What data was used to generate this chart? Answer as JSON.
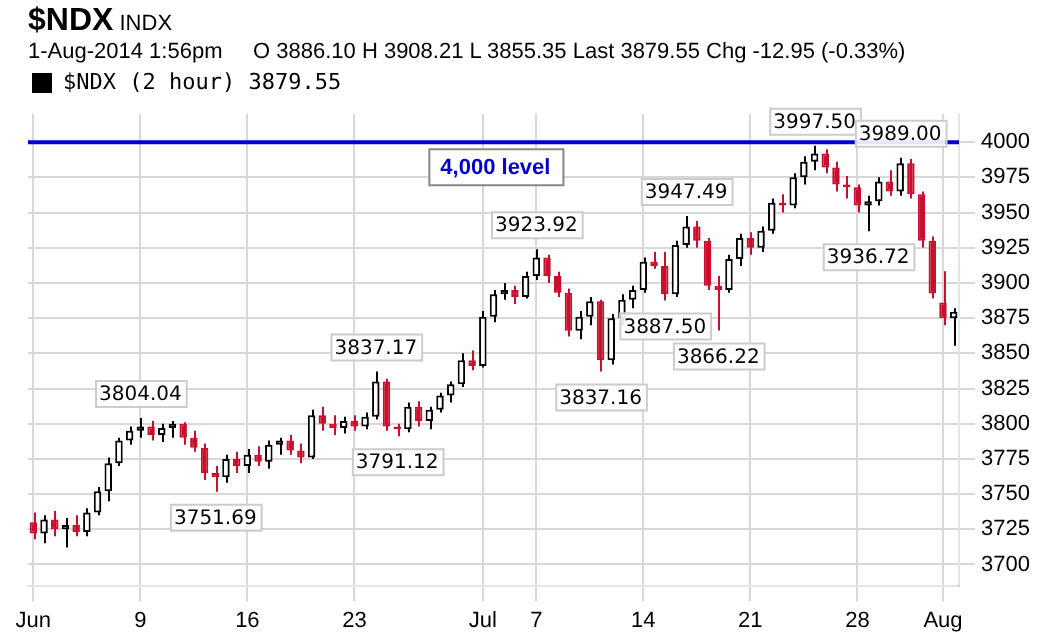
{
  "chart_data": {
    "type": "candlestick",
    "title": "$NDX",
    "annotations": [
      "INDX",
      "1-Aug-2014 1:56pm",
      "O 3886.10 H 3908.21 L 3855.35 Last 3879.55 Chg -12.95 (-0.33%)",
      {
        "text": "3804.04",
        "y": 3804.04
      },
      {
        "text": "3751.69",
        "y": 3751.69
      },
      {
        "text": "3837.17",
        "y": 3837.17
      },
      {
        "text": "3791.12",
        "y": 3791.12
      },
      {
        "text": "3923.92",
        "y": 3923.92
      },
      {
        "text": "3837.16",
        "y": 3837.16
      },
      {
        "text": "3887.50",
        "y": 3887.5
      },
      {
        "text": "3947.49",
        "y": 3947.49
      },
      {
        "text": "3866.22",
        "y": 3866.22
      },
      {
        "text": "3997.50",
        "y": 3997.5
      },
      {
        "text": "3936.72",
        "y": 3936.72
      },
      {
        "text": "3989.00",
        "y": 3989
      }
    ],
    "categories": [
      "Jun",
      null,
      null,
      null,
      null,
      null,
      null,
      null,
      null,
      null,
      "9",
      null,
      null,
      null,
      null,
      null,
      null,
      null,
      null,
      null,
      "16",
      null,
      null,
      null,
      null,
      null,
      null,
      null,
      null,
      null,
      "23",
      null,
      null,
      null,
      null,
      null,
      null,
      null,
      null,
      null,
      null,
      null,
      "Jul",
      null,
      null,
      null,
      null,
      "7",
      null,
      null,
      null,
      null,
      null,
      null,
      null,
      null,
      null,
      "14",
      null,
      null,
      null,
      null,
      null,
      null,
      null,
      null,
      null,
      "21",
      null,
      null,
      null,
      null,
      null,
      null,
      null,
      null,
      null,
      "28",
      null,
      null,
      null,
      null,
      null,
      null,
      null,
      "Aug",
      null
    ],
    "series": [
      {
        "name": "$NDX (2 hour) 3879.55",
        "color": "#000000",
        "colors": [
          "#c8102e",
          "#000000",
          "#c8102e",
          "#000000",
          "#c8102e",
          "#000000",
          "#000000",
          "#000000",
          "#000000",
          "#000000",
          "#000000",
          "#c8102e",
          "#000000",
          "#000000",
          "#c8102e",
          "#c8102e",
          "#c8102e",
          "#c8102e",
          "#000000",
          "#c8102e",
          "#000000",
          "#c8102e",
          "#000000",
          "#000000",
          "#c8102e",
          "#c8102e",
          "#000000",
          "#c8102e",
          "#c8102e",
          "#000000",
          "#c8102e",
          "#000000",
          "#000000",
          "#c8102e",
          "#c8102e",
          "#000000",
          "#c8102e",
          "#000000",
          "#000000",
          "#000000",
          "#000000",
          "#c8102e",
          "#000000",
          "#000000",
          "#000000",
          "#c8102e",
          "#000000",
          "#000000",
          "#c8102e",
          "#c8102e",
          "#c8102e",
          "#000000",
          "#000000",
          "#c8102e",
          "#000000",
          "#000000",
          "#000000",
          "#000000",
          "#c8102e",
          "#c8102e",
          "#000000",
          "#000000",
          "#c8102e",
          "#c8102e",
          "#c8102e",
          "#000000",
          "#000000",
          "#c8102e",
          "#000000",
          "#000000",
          "#c8102e",
          "#000000",
          "#000000",
          "#000000",
          "#c8102e",
          "#c8102e",
          "#c8102e",
          "#c8102e",
          "#000000",
          "#000000",
          "#c8102e",
          "#000000",
          "#c8102e",
          "#c8102e",
          "#c8102e",
          "#c8102e",
          "#000000"
        ],
        "ohlc": [
          [
            3730,
            3737,
            3718,
            3722
          ],
          [
            3722,
            3735,
            3715,
            3732
          ],
          [
            3732,
            3738,
            3720,
            3725
          ],
          [
            3725,
            3733,
            3712,
            3728
          ],
          [
            3728,
            3735,
            3720,
            3723
          ],
          [
            3723,
            3740,
            3720,
            3737
          ],
          [
            3737,
            3755,
            3735,
            3752
          ],
          [
            3752,
            3776,
            3745,
            3772
          ],
          [
            3772,
            3790,
            3770,
            3788
          ],
          [
            3788,
            3798,
            3785,
            3795
          ],
          [
            3795,
            3804.04,
            3790,
            3798
          ],
          [
            3798,
            3802,
            3788,
            3792
          ],
          [
            3792,
            3800,
            3787,
            3797
          ],
          [
            3797,
            3802,
            3790,
            3800
          ],
          [
            3800,
            3801,
            3785,
            3790
          ],
          [
            3790,
            3795,
            3780,
            3783
          ],
          [
            3783,
            3786,
            3760,
            3765
          ],
          [
            3765,
            3770,
            3751.69,
            3762
          ],
          [
            3762,
            3778,
            3758,
            3775
          ],
          [
            3775,
            3780,
            3765,
            3770
          ],
          [
            3770,
            3782,
            3765,
            3778
          ],
          [
            3778,
            3784,
            3770,
            3773
          ],
          [
            3773,
            3788,
            3768,
            3785
          ],
          [
            3785,
            3790,
            3778,
            3788
          ],
          [
            3788,
            3792,
            3778,
            3781
          ],
          [
            3781,
            3786,
            3772,
            3776
          ],
          [
            3776,
            3810,
            3775,
            3806
          ],
          [
            3806,
            3812,
            3795,
            3800
          ],
          [
            3800,
            3806,
            3792,
            3797
          ],
          [
            3797,
            3805,
            3793,
            3802
          ],
          [
            3802,
            3806,
            3795,
            3798
          ],
          [
            3798,
            3808,
            3796,
            3805
          ],
          [
            3805,
            3837.17,
            3803,
            3830
          ],
          [
            3830,
            3832,
            3795,
            3798
          ],
          [
            3798,
            3800,
            3791.12,
            3796
          ],
          [
            3796,
            3815,
            3794,
            3812
          ],
          [
            3812,
            3816,
            3798,
            3802
          ],
          [
            3802,
            3812,
            3796,
            3810
          ],
          [
            3810,
            3822,
            3808,
            3820
          ],
          [
            3820,
            3830,
            3815,
            3828
          ],
          [
            3828,
            3850,
            3826,
            3845
          ],
          [
            3845,
            3852,
            3838,
            3841
          ],
          [
            3841,
            3880,
            3840,
            3876
          ],
          [
            3876,
            3895,
            3872,
            3892
          ],
          [
            3892,
            3900,
            3888,
            3895
          ],
          [
            3895,
            3898,
            3885,
            3890
          ],
          [
            3890,
            3908,
            3889,
            3905
          ],
          [
            3905,
            3923.92,
            3902,
            3918
          ],
          [
            3918,
            3920,
            3900,
            3905
          ],
          [
            3905,
            3908,
            3890,
            3893
          ],
          [
            3893,
            3896,
            3862,
            3866
          ],
          [
            3866,
            3880,
            3860,
            3876
          ],
          [
            3876,
            3890,
            3870,
            3887
          ],
          [
            3887,
            3888,
            3837.16,
            3845
          ],
          [
            3845,
            3878,
            3842,
            3875
          ],
          [
            3875,
            3892,
            3870,
            3888
          ],
          [
            3888,
            3898,
            3882,
            3895
          ],
          [
            3895,
            3918,
            3893,
            3915
          ],
          [
            3915,
            3922,
            3910,
            3912
          ],
          [
            3912,
            3922,
            3887.5,
            3892
          ],
          [
            3892,
            3930,
            3890,
            3927
          ],
          [
            3927,
            3947.49,
            3925,
            3940
          ],
          [
            3940,
            3944,
            3925,
            3930
          ],
          [
            3930,
            3932,
            3895,
            3898
          ],
          [
            3898,
            3905,
            3866.22,
            3895
          ],
          [
            3895,
            3920,
            3893,
            3917
          ],
          [
            3917,
            3935,
            3912,
            3932
          ],
          [
            3932,
            3936,
            3920,
            3925
          ],
          [
            3925,
            3940,
            3922,
            3937
          ],
          [
            3937,
            3960,
            3935,
            3957
          ],
          [
            3957,
            3963,
            3950,
            3955
          ],
          [
            3955,
            3978,
            3953,
            3975
          ],
          [
            3975,
            3990,
            3970,
            3986
          ],
          [
            3986,
            3997.5,
            3980,
            3992
          ],
          [
            3992,
            3995,
            3978,
            3982
          ],
          [
            3982,
            3986,
            3965,
            3970
          ],
          [
            3970,
            3976,
            3960,
            3968
          ],
          [
            3968,
            3970,
            3950,
            3955
          ],
          [
            3955,
            3962,
            3936.72,
            3958
          ],
          [
            3958,
            3975,
            3955,
            3972
          ],
          [
            3972,
            3980,
            3962,
            3965
          ],
          [
            3965,
            3989,
            3962,
            3985
          ],
          [
            3985,
            3988,
            3960,
            3963
          ],
          [
            3963,
            3965,
            3925,
            3930
          ],
          [
            3930,
            3933,
            3889,
            3892.5
          ],
          [
            3886.1,
            3908.21,
            3870,
            3875
          ],
          [
            3875,
            3882,
            3855.35,
            3879.55
          ]
        ]
      }
    ],
    "ylim": [
      3685,
      4020
    ],
    "yticks": [
      3700,
      3725,
      3750,
      3775,
      3800,
      3825,
      3850,
      3875,
      3900,
      3925,
      3950,
      3975,
      4000
    ],
    "ref_lines": [
      {
        "axis": "y",
        "value": 4000,
        "label": "4,000 level",
        "color": "#0000cc"
      }
    ],
    "grid": true,
    "legend": "top left"
  }
}
